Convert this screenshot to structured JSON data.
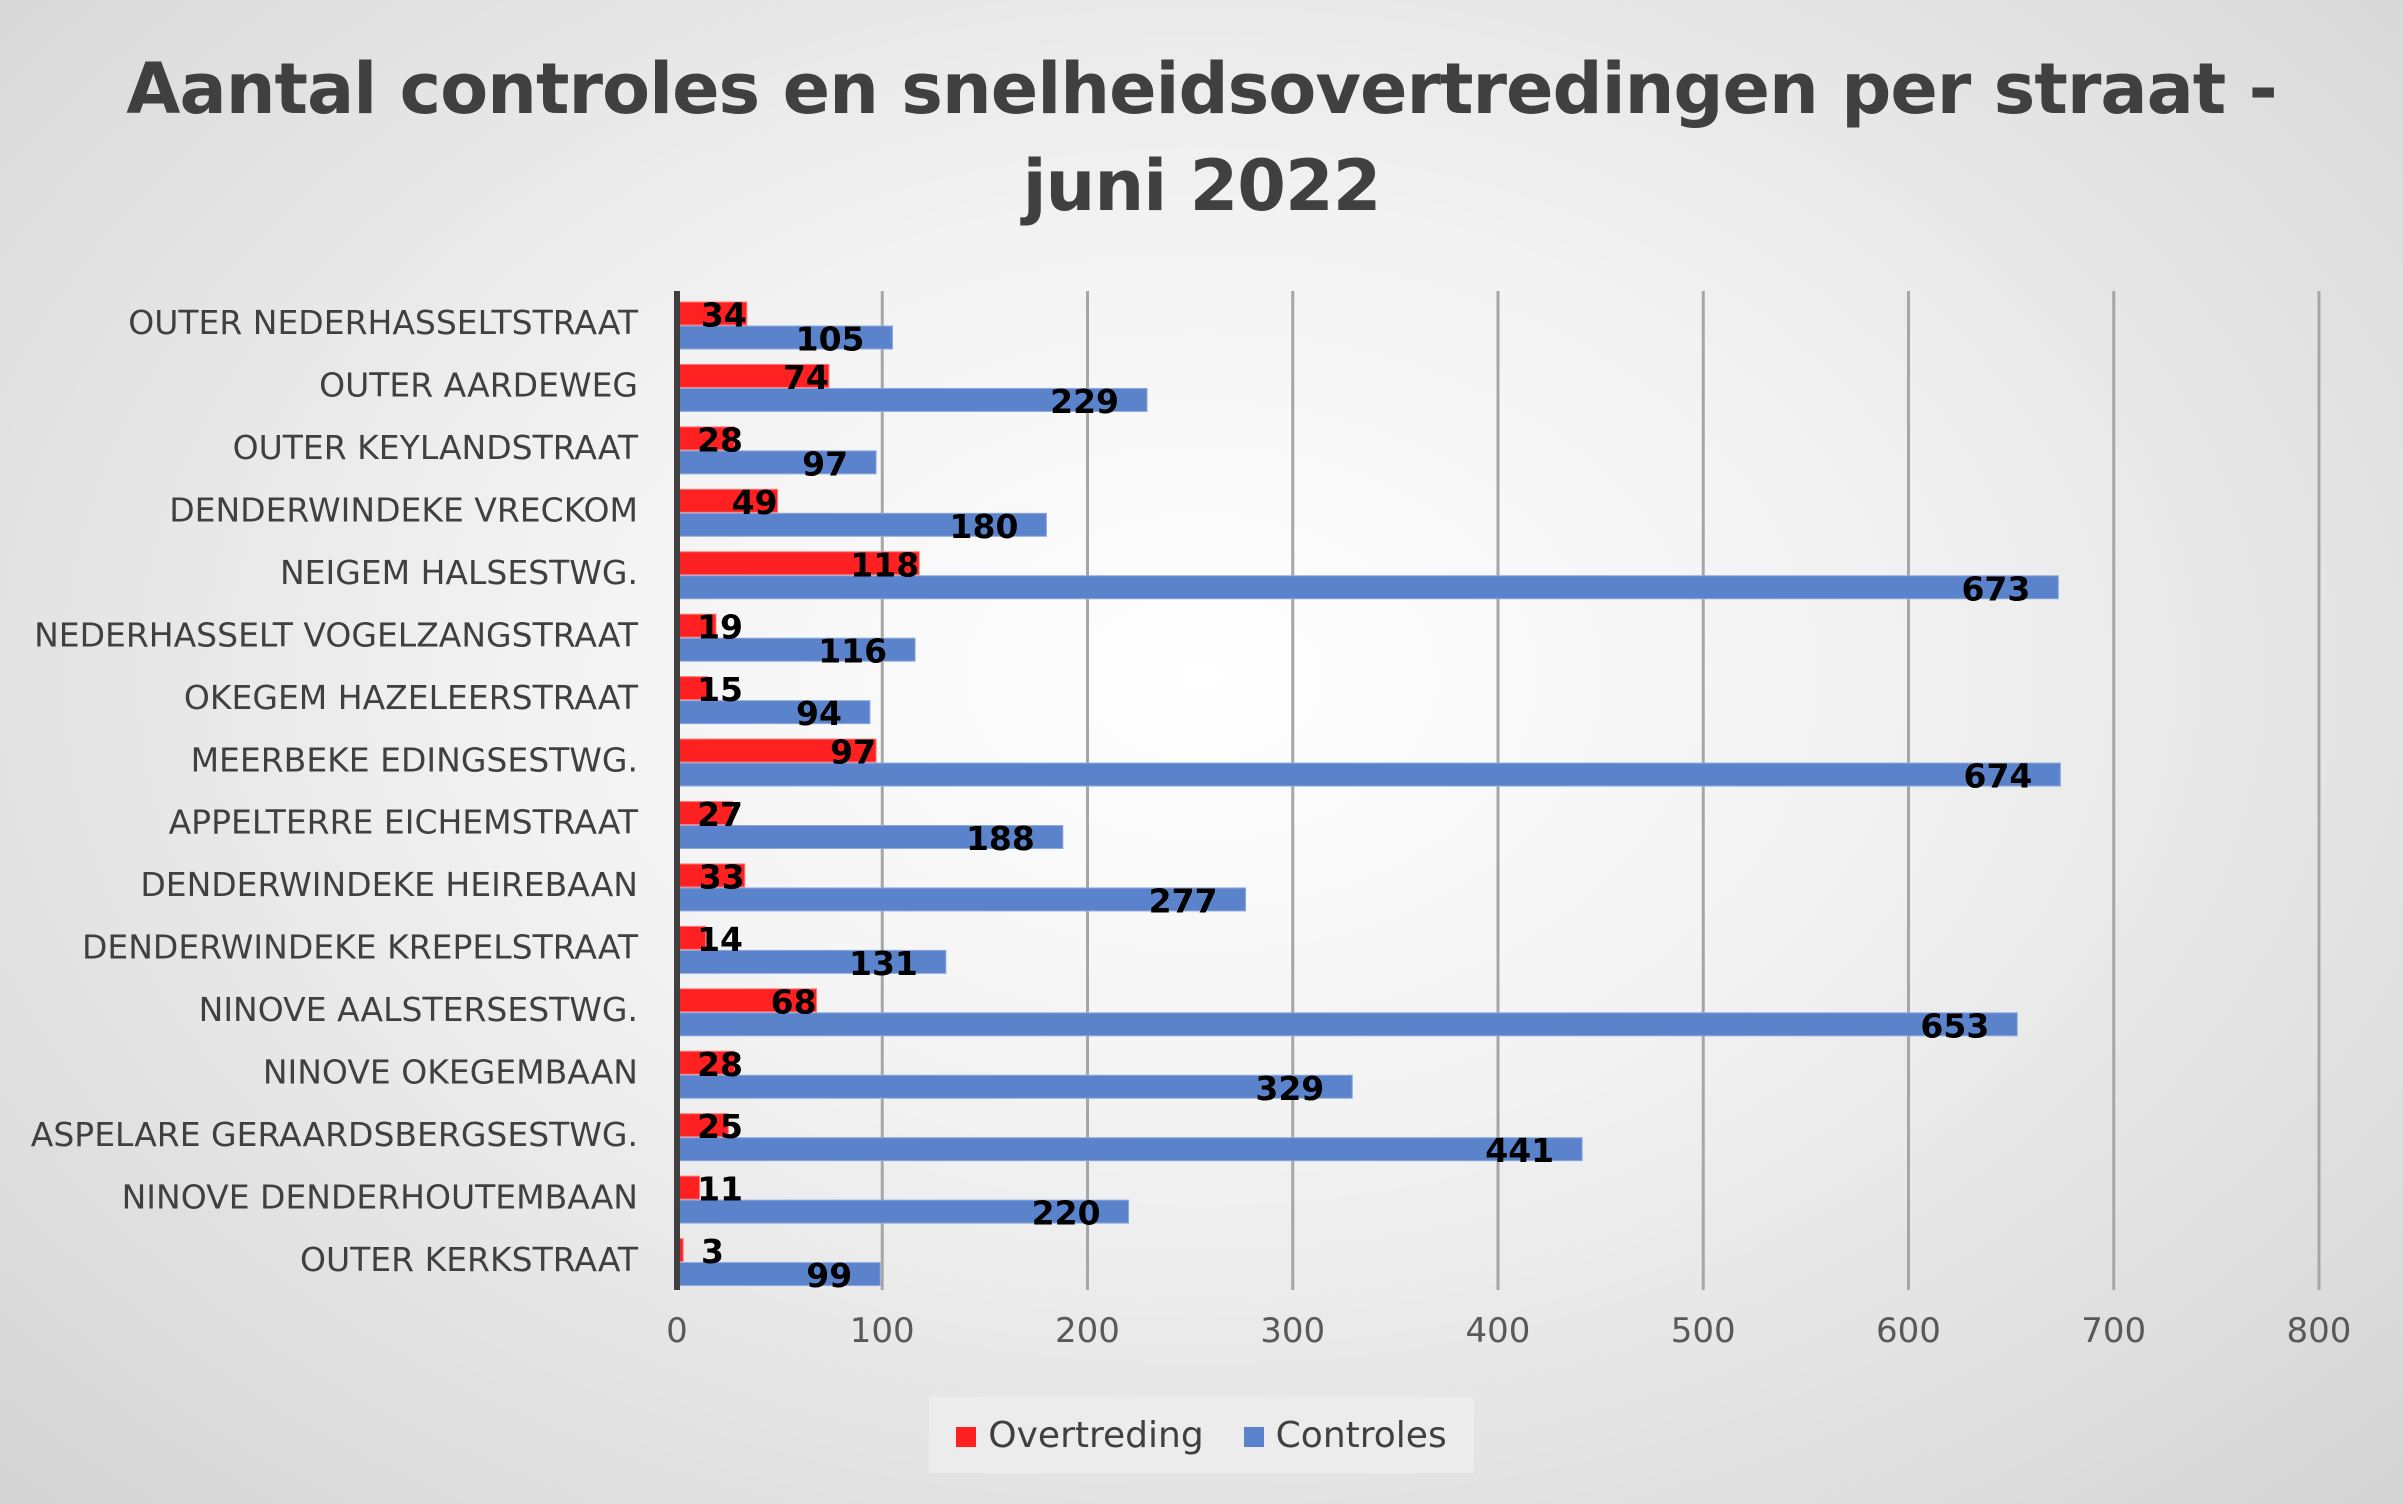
{
  "chart_data": {
    "type": "bar",
    "orientation": "horizontal",
    "title_line1": "Aantal controles en snelheidsovertredingen per straat -",
    "title_line2": "juni 2022",
    "categories": [
      "OUTER NEDERHASSELTSTRAAT",
      "OUTER AARDEWEG",
      "OUTER KEYLANDSTRAAT",
      "DENDERWINDEKE VRECKOM",
      "NEIGEM HALSESTWG.",
      "NEDERHASSELT VOGELZANGSTRAAT",
      "OKEGEM HAZELEERSTRAAT",
      "MEERBEKE EDINGSESTWG.",
      "APPELTERRE EICHEMSTRAAT",
      "DENDERWINDEKE HEIREBAAN",
      "DENDERWINDEKE KREPELSTRAAT",
      "NINOVE AALSTERSESTWG.",
      "NINOVE OKEGEMBAAN",
      "ASPELARE GERAARDSBERGSESTWG.",
      "NINOVE DENDERHOUTEMBAAN",
      "OUTER KERKSTRAAT"
    ],
    "series": [
      {
        "name": "Overtreding",
        "color": "#ff2121",
        "values": [
          34,
          74,
          28,
          49,
          118,
          19,
          15,
          97,
          27,
          33,
          14,
          68,
          28,
          25,
          11,
          3
        ]
      },
      {
        "name": "Controles",
        "color": "#5b83cc",
        "values": [
          105,
          229,
          97,
          180,
          673,
          116,
          94,
          674,
          188,
          277,
          131,
          653,
          329,
          441,
          220,
          99
        ]
      }
    ],
    "xlim": [
      0,
      800
    ],
    "xticks": [
      0,
      100,
      200,
      300,
      400,
      500,
      600,
      700,
      800
    ],
    "grid": true,
    "legend_position": "bottom"
  }
}
